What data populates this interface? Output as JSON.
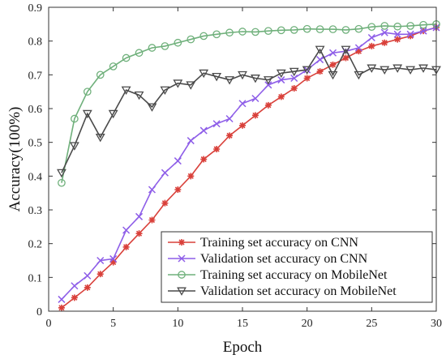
{
  "chart_data": {
    "type": "line",
    "title": "",
    "xlabel": "Epoch",
    "ylabel": "Accuracy(100%)",
    "xlim": [
      0,
      30
    ],
    "ylim": [
      0,
      0.9
    ],
    "xticks": [
      0,
      5,
      10,
      15,
      20,
      25,
      30
    ],
    "yticks": [
      0,
      0.1,
      0.2,
      0.3,
      0.4,
      0.5,
      0.6,
      0.7,
      0.8,
      0.9
    ],
    "grid": false,
    "legend_position": "bottom-right",
    "x": [
      1,
      2,
      3,
      4,
      5,
      6,
      7,
      8,
      9,
      10,
      11,
      12,
      13,
      14,
      15,
      16,
      17,
      18,
      19,
      20,
      21,
      22,
      23,
      24,
      25,
      26,
      27,
      28,
      29,
      30
    ],
    "series": [
      {
        "name": "Training set accuracy on CNN",
        "color": "#d9403a",
        "marker": "asterisk",
        "values": [
          0.01,
          0.04,
          0.07,
          0.11,
          0.145,
          0.19,
          0.23,
          0.27,
          0.32,
          0.36,
          0.4,
          0.45,
          0.48,
          0.52,
          0.55,
          0.58,
          0.61,
          0.635,
          0.66,
          0.69,
          0.71,
          0.73,
          0.75,
          0.77,
          0.785,
          0.795,
          0.805,
          0.815,
          0.83,
          0.84
        ]
      },
      {
        "name": "Validation set accuracy on CNN",
        "color": "#8e5ee8",
        "marker": "x",
        "values": [
          0.035,
          0.075,
          0.105,
          0.15,
          0.155,
          0.24,
          0.28,
          0.36,
          0.41,
          0.445,
          0.505,
          0.535,
          0.555,
          0.57,
          0.615,
          0.63,
          0.67,
          0.685,
          0.69,
          0.715,
          0.745,
          0.765,
          0.77,
          0.78,
          0.81,
          0.825,
          0.82,
          0.82,
          0.83,
          0.84
        ]
      },
      {
        "name": "Training set accuracy on MobileNet",
        "color": "#6fb07b",
        "marker": "circle",
        "values": [
          0.38,
          0.57,
          0.65,
          0.7,
          0.725,
          0.75,
          0.765,
          0.78,
          0.785,
          0.795,
          0.805,
          0.815,
          0.82,
          0.825,
          0.828,
          0.827,
          0.83,
          0.832,
          0.833,
          0.836,
          0.835,
          0.835,
          0.833,
          0.836,
          0.842,
          0.845,
          0.843,
          0.845,
          0.848,
          0.85
        ]
      },
      {
        "name": "Validation set accuracy on MobileNet",
        "color": "#4a4a4a",
        "marker": "triangle-down",
        "values": [
          0.41,
          0.49,
          0.585,
          0.515,
          0.585,
          0.655,
          0.64,
          0.605,
          0.655,
          0.675,
          0.67,
          0.705,
          0.695,
          0.685,
          0.7,
          0.69,
          0.685,
          0.705,
          0.71,
          0.715,
          0.775,
          0.7,
          0.775,
          0.7,
          0.72,
          0.715,
          0.72,
          0.715,
          0.72,
          0.715
        ]
      }
    ]
  }
}
